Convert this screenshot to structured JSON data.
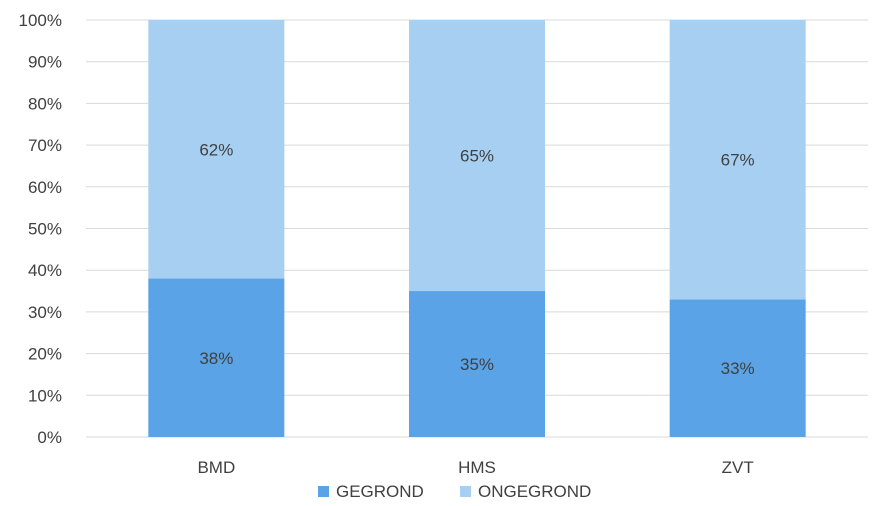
{
  "chart_data": {
    "type": "bar",
    "stacked": true,
    "categories": [
      "BMD",
      "HMS",
      "ZVT"
    ],
    "series": [
      {
        "name": "GEGROND",
        "values": [
          38,
          35,
          33
        ],
        "labels": [
          "38%",
          "35%",
          "33%"
        ],
        "color": "#5aa3e6"
      },
      {
        "name": "ONGEGROND",
        "values": [
          62,
          65,
          67
        ],
        "labels": [
          "62%",
          "65%",
          "67%"
        ],
        "color": "#a7cff2"
      }
    ],
    "ylim": [
      0,
      100
    ],
    "yticks": [
      "0%",
      "10%",
      "20%",
      "30%",
      "40%",
      "50%",
      "60%",
      "70%",
      "80%",
      "90%",
      "100%"
    ],
    "grid": true,
    "legend": "bottom-center",
    "title": "",
    "xlabel": "",
    "ylabel": ""
  }
}
